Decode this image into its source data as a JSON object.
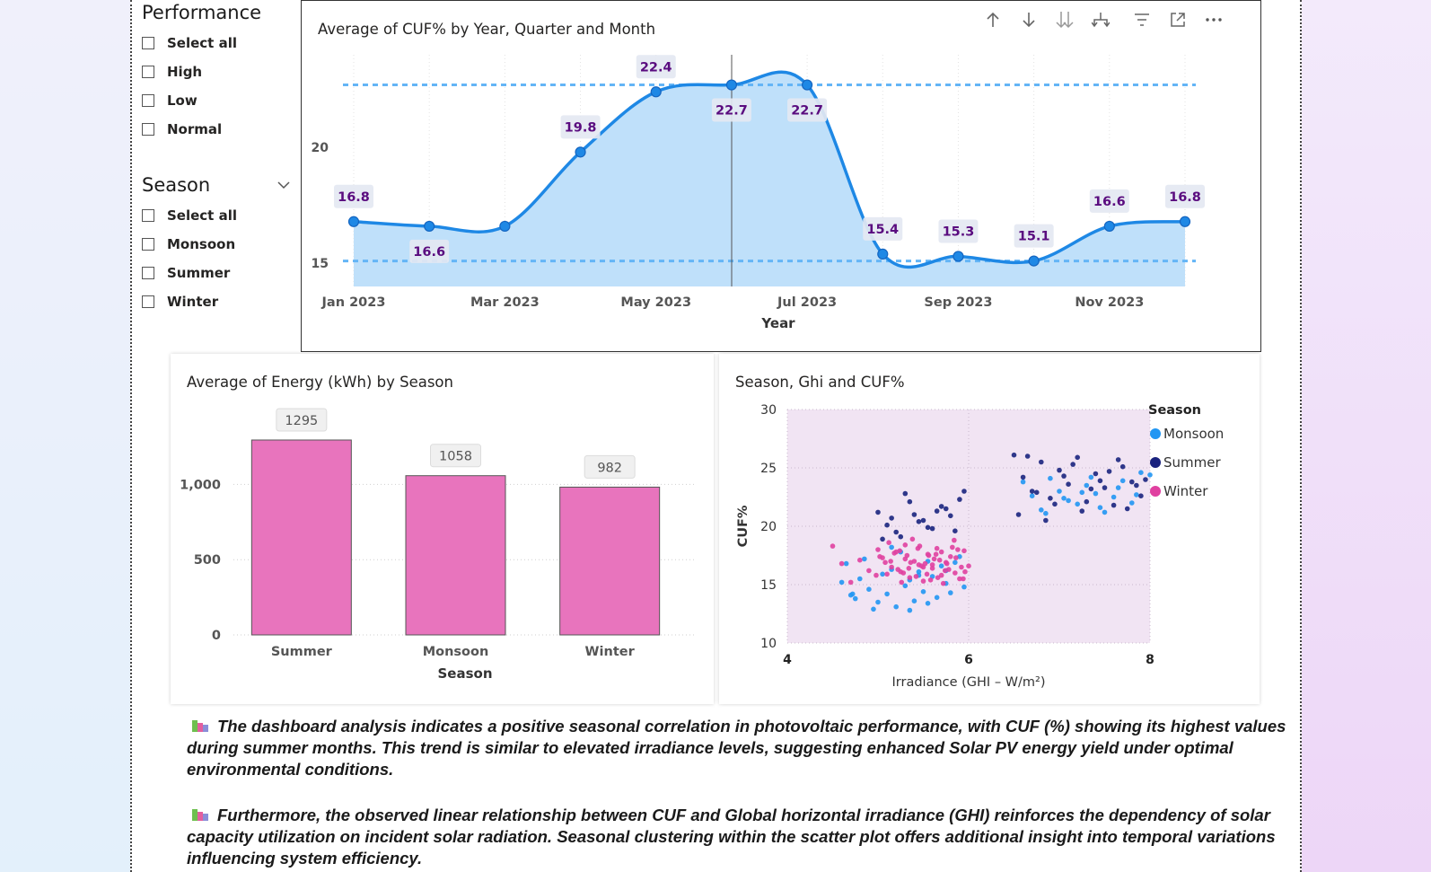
{
  "slicers": {
    "performance": {
      "title": "Performance",
      "items": [
        "Select all",
        "High",
        "Low",
        "Normal"
      ]
    },
    "season": {
      "title": "Season",
      "items": [
        "Select all",
        "Monsoon",
        "Summer",
        "Winter"
      ]
    }
  },
  "colors": {
    "line": "#1e88e5",
    "area": "#bfe0fa",
    "refline": "#64b5f6",
    "label_text": "#5a0c7f",
    "bar": "#e874bd",
    "monsoon": "#2196f3",
    "summer": "#1a237e",
    "winter": "#e040a0",
    "scatter_bg": "#f1e4f3"
  },
  "line_chart": {
    "title": "Average of CUF% by Year, Quarter and Month",
    "toolbar_icons": [
      "arrow-up-icon",
      "arrow-down-icon",
      "double-arrow-down-icon",
      "expand-hierarchy-icon",
      "filter-icon",
      "focus-mode-icon",
      "more-options-icon"
    ]
  },
  "bar_chart": {
    "title": "Average of Energy (kWh) by Season"
  },
  "scatter_chart": {
    "title": "Season, Ghi and CUF%",
    "legend_title": "Season",
    "legend": [
      "Monsoon",
      "Summer",
      "Winter"
    ]
  },
  "chart_data": [
    {
      "type": "area",
      "title": "Average of CUF% by Year, Quarter and Month",
      "xlabel": "Year",
      "ylabel": "",
      "x": [
        "Jan 2023",
        "Feb 2023",
        "Mar 2023",
        "Apr 2023",
        "May 2023",
        "Jun 2023",
        "Jul 2023",
        "Aug 2023",
        "Sep 2023",
        "Oct 2023",
        "Nov 2023",
        "Dec 2023"
      ],
      "values": [
        16.8,
        16.6,
        16.6,
        19.8,
        22.4,
        22.7,
        22.7,
        15.4,
        15.3,
        15.1,
        16.6,
        16.8
      ],
      "point_labels": [
        "16.8",
        "16.6",
        "",
        "19.8",
        "22.4",
        "22.7",
        "22.7",
        "15.4",
        "15.3",
        "15.1",
        "16.6",
        "16.8"
      ],
      "x_ticks": [
        "Jan 2023",
        "Mar 2023",
        "May 2023",
        "Jul 2023",
        "Sep 2023",
        "Nov 2023"
      ],
      "y_ticks": [
        15,
        20
      ],
      "ylim": [
        14.0,
        24.0
      ],
      "reference_lines": [
        22.7,
        15.1
      ],
      "grid": true,
      "legend": "none"
    },
    {
      "type": "bar",
      "title": "Average of Energy (kWh) by Season",
      "categories": [
        "Summer",
        "Monsoon",
        "Winter"
      ],
      "values": [
        1295,
        1058,
        982
      ],
      "data_labels": [
        "1295",
        "1058",
        "982"
      ],
      "xlabel": "Season",
      "ylabel": "",
      "y_ticks": [
        "0",
        "500",
        "1,000"
      ],
      "ylim": [
        0,
        1450
      ],
      "grid": true
    },
    {
      "type": "scatter",
      "title": "Season, Ghi and CUF%",
      "xlabel": "Irradiance (GHI – W/m²)",
      "ylabel": "CUF%",
      "xlim": [
        4,
        8
      ],
      "ylim": [
        10,
        30
      ],
      "x_ticks": [
        "4",
        "6",
        "8"
      ],
      "y_ticks": [
        "10",
        "15",
        "20",
        "25",
        "30"
      ],
      "legend_position": "right",
      "series": [
        {
          "name": "Monsoon",
          "x": [
            4.6,
            4.65,
            4.7,
            4.75,
            4.8,
            4.85,
            4.9,
            5.0,
            5.05,
            5.1,
            5.15,
            5.2,
            5.25,
            5.3,
            5.35,
            5.4,
            5.45,
            5.5,
            5.55,
            5.6,
            5.65,
            5.7,
            5.75,
            5.8,
            5.85,
            5.9,
            5.95,
            5.15,
            5.35,
            5.55,
            4.72,
            4.95,
            5.45,
            5.75,
            6.6,
            6.7,
            6.8,
            6.9,
            7.0,
            7.1,
            7.2,
            7.3,
            7.4,
            7.5,
            7.6,
            7.7,
            7.8,
            7.9,
            8.0,
            7.25,
            7.45,
            7.65,
            7.85,
            6.85,
            7.05,
            7.35
          ],
          "y": [
            15.2,
            16.8,
            14.1,
            13.8,
            15.5,
            17.2,
            14.6,
            13.5,
            15.9,
            14.2,
            16.3,
            13.1,
            17.8,
            14.9,
            15.4,
            13.6,
            16.1,
            14.4,
            17.0,
            15.7,
            13.9,
            16.6,
            15.1,
            14.3,
            16.9,
            17.4,
            14.8,
            18.2,
            12.8,
            13.4,
            14.2,
            12.9,
            15.8,
            16.2,
            23.8,
            22.6,
            21.4,
            24.1,
            23.0,
            22.2,
            21.9,
            23.5,
            22.8,
            21.2,
            22.5,
            23.9,
            22.0,
            24.6,
            24.4,
            22.9,
            21.6,
            23.3,
            22.7,
            21.1,
            22.4,
            24.2
          ]
        },
        {
          "name": "Summer",
          "x": [
            5.0,
            5.1,
            5.2,
            5.3,
            5.4,
            5.5,
            5.6,
            5.7,
            5.8,
            5.9,
            5.95,
            5.25,
            5.45,
            5.65,
            5.85,
            5.15,
            5.35,
            5.55,
            5.75,
            5.05,
            6.5,
            6.6,
            6.7,
            6.8,
            6.9,
            7.0,
            7.1,
            7.2,
            7.3,
            7.4,
            7.5,
            7.6,
            7.7,
            7.8,
            7.9,
            7.95,
            6.55,
            6.75,
            6.95,
            7.15,
            7.35,
            7.55,
            7.75,
            7.85,
            6.65,
            6.85,
            7.05,
            7.25,
            7.45,
            7.65
          ],
          "y": [
            21.2,
            20.1,
            19.5,
            22.8,
            21.0,
            20.5,
            19.8,
            21.7,
            20.9,
            22.3,
            23.0,
            19.1,
            20.4,
            21.3,
            19.6,
            20.7,
            22.1,
            19.9,
            21.5,
            18.9,
            26.1,
            24.2,
            23.0,
            25.5,
            22.4,
            24.8,
            23.6,
            25.9,
            22.1,
            24.5,
            23.3,
            21.8,
            25.1,
            23.8,
            22.6,
            24.0,
            21.0,
            22.9,
            21.9,
            25.3,
            23.2,
            24.7,
            21.5,
            23.5,
            26.0,
            20.5,
            24.3,
            21.3,
            23.9,
            25.7
          ]
        },
        {
          "name": "Winter",
          "x": [
            4.5,
            4.6,
            4.7,
            4.8,
            4.9,
            5.0,
            5.05,
            5.1,
            5.15,
            5.2,
            5.25,
            5.3,
            5.35,
            5.4,
            5.45,
            5.5,
            5.55,
            5.6,
            5.65,
            5.7,
            5.75,
            5.8,
            5.85,
            5.9,
            5.95,
            6.0,
            5.12,
            5.22,
            5.32,
            5.42,
            5.52,
            5.62,
            5.72,
            5.82,
            5.92,
            5.18,
            5.28,
            5.38,
            5.48,
            5.58,
            5.68,
            5.78,
            5.88,
            5.08,
            4.98,
            5.02,
            5.26,
            5.36,
            5.46,
            5.56,
            5.66,
            5.76,
            5.86,
            5.96,
            5.14,
            5.24,
            5.34,
            5.44,
            5.54,
            5.64,
            5.74,
            5.84,
            5.94,
            5.6,
            5.7,
            5.3,
            5.5
          ],
          "y": [
            18.3,
            16.8,
            15.2,
            17.1,
            16.2,
            18.0,
            17.3,
            15.9,
            16.5,
            17.8,
            16.1,
            18.4,
            15.6,
            17.0,
            16.7,
            15.3,
            17.6,
            16.4,
            18.1,
            15.8,
            16.9,
            17.4,
            16.0,
            15.5,
            17.9,
            16.6,
            18.6,
            16.3,
            17.5,
            15.7,
            16.8,
            17.2,
            15.1,
            18.2,
            16.5,
            17.7,
            16.0,
            18.9,
            16.6,
            15.4,
            17.1,
            16.3,
            18.0,
            16.9,
            15.8,
            17.4,
            15.2,
            16.9,
            18.3,
            17.5,
            15.6,
            16.8,
            17.3,
            16.1,
            17.0,
            17.9,
            16.4,
            18.1,
            15.9,
            17.6,
            16.2,
            18.8,
            15.5,
            16.7,
            17.8,
            17.2,
            16.5
          ]
        }
      ]
    }
  ],
  "narrative": {
    "paragraph1": "The dashboard analysis indicates a positive seasonal correlation in photovoltaic performance, with CUF (%) showing its highest values during summer months. This trend is similar to elevated irradiance levels, suggesting enhanced Solar  PV energy yield under optimal environmental conditions.",
    "paragraph2": "Furthermore, the observed linear relationship between CUF and Global horizontal irradiance (GHI) reinforces the dependency of solar capacity utilization on incident solar radiation. Seasonal clustering within the scatter plot offers additional insight into temporal variations influencing system efficiency."
  }
}
